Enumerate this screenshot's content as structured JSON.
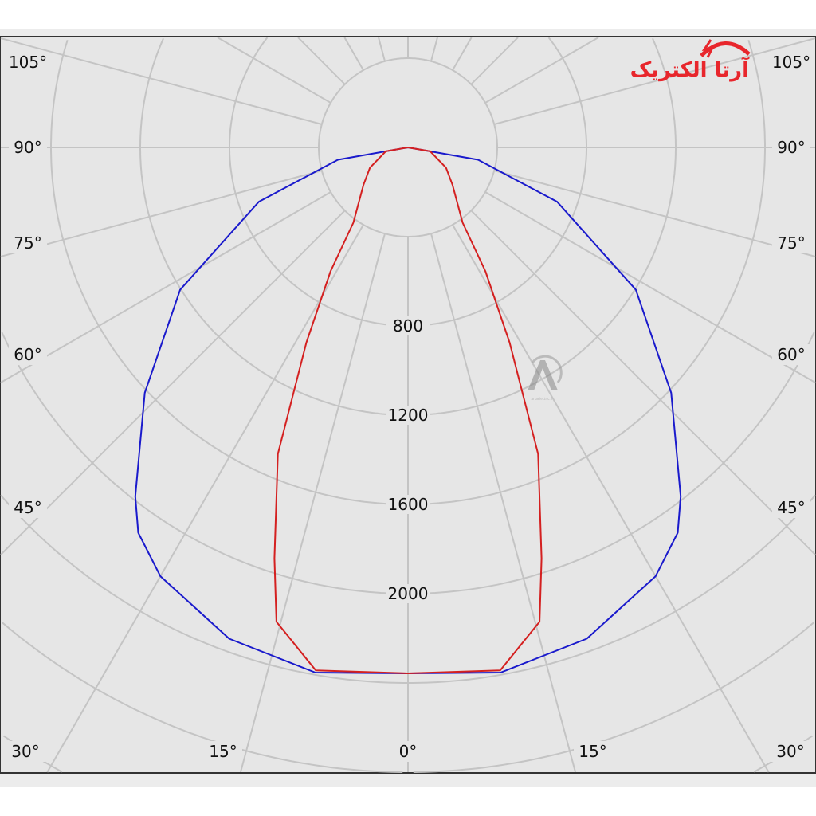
{
  "chart_data": {
    "type": "polar-line",
    "title": "",
    "radial_ticks": [
      800,
      1200,
      1600,
      2000
    ],
    "radial_grid_step": 400,
    "angle_ticks": [
      {
        "label": "105°",
        "angle": 105
      },
      {
        "label": "90°",
        "angle": 90
      },
      {
        "label": "75°",
        "angle": 75
      },
      {
        "label": "60°",
        "angle": 60
      },
      {
        "label": "45°",
        "angle": 45
      },
      {
        "label": "30°",
        "angle": 30
      },
      {
        "label": "15°",
        "angle": 15
      },
      {
        "label": "0°",
        "angle": 0
      }
    ],
    "grid": true,
    "symmetric": true,
    "series": [
      {
        "color": "#1a1acc",
        "points": [
          [
            0,
            2357
          ],
          [
            10,
            2390
          ],
          [
            20,
            2343
          ],
          [
            30,
            2219
          ],
          [
            35,
            2108
          ],
          [
            38,
            1985
          ],
          [
            47,
            1613
          ],
          [
            58,
            1204
          ],
          [
            70,
            711
          ],
          [
            80,
            319
          ],
          [
            90,
            0
          ]
        ]
      },
      {
        "color": "#d42020",
        "points": [
          [
            0,
            2357
          ],
          [
            10,
            2380
          ],
          [
            15.5,
            2206
          ],
          [
            18,
            1937
          ],
          [
            23,
            1493
          ],
          [
            27.5,
            987
          ],
          [
            32,
            655
          ],
          [
            36,
            417
          ],
          [
            50,
            260
          ],
          [
            62,
            193
          ],
          [
            80,
            101
          ],
          [
            90,
            0
          ]
        ]
      }
    ]
  },
  "logo": {
    "text": "آرتا الکتریک",
    "color": "#e8262c"
  },
  "watermark": {
    "text": "artaelectric.ir"
  }
}
